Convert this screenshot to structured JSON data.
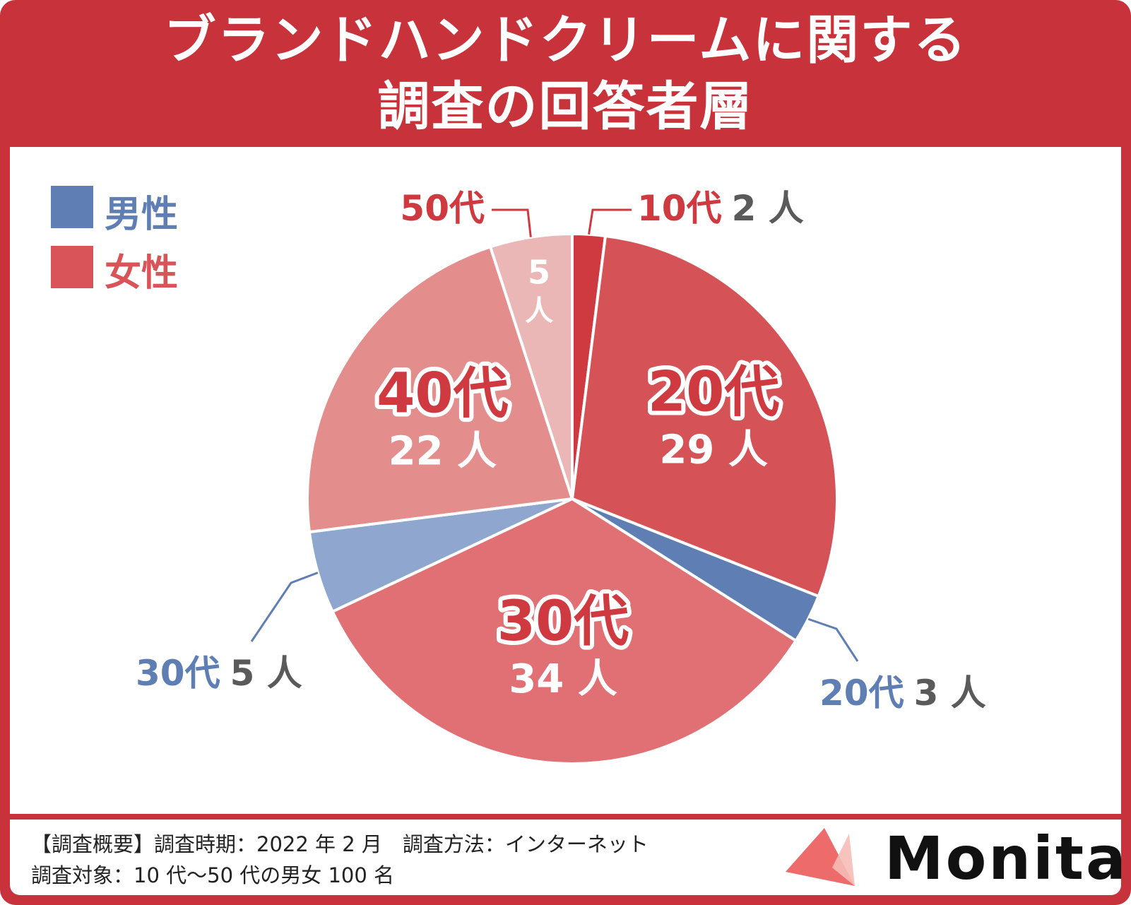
{
  "title_lines": [
    "ブランドハンドクリームに関する",
    "調査の回答者層"
  ],
  "legend": [
    {
      "label": "男性",
      "color": "#5f7fb4"
    },
    {
      "label": "女性",
      "color": "#d95459"
    }
  ],
  "chart_data": {
    "type": "pie",
    "unit": "人",
    "total": 100,
    "slices": [
      {
        "age": "10代",
        "gender": "女性",
        "value": 2,
        "color": "#cf3a40",
        "count_text": "2 人"
      },
      {
        "age": "20代",
        "gender": "女性",
        "value": 29,
        "color": "#d55257",
        "count_text": "29 人"
      },
      {
        "age": "20代",
        "gender": "男性",
        "value": 3,
        "color": "#5f7fb4",
        "count_text": "3 人"
      },
      {
        "age": "30代",
        "gender": "女性",
        "value": 34,
        "color": "#e07074",
        "count_text": "34 人"
      },
      {
        "age": "30代",
        "gender": "男性",
        "value": 5,
        "color": "#8fa6cf",
        "count_text": "5 人"
      },
      {
        "age": "40代",
        "gender": "女性",
        "value": 22,
        "color": "#e48d8d",
        "count_text": "22 人"
      },
      {
        "age": "50代",
        "gender": "女性",
        "value": 5,
        "color": "#ebb6b6",
        "count_text": "5 人"
      }
    ]
  },
  "footer": {
    "line1": "【調査概要】調査時期：2022 年 2 月　調査方法：インターネット",
    "line2": "調査対象：10 代〜50 代の男女 100 名",
    "brand": "Monita"
  }
}
